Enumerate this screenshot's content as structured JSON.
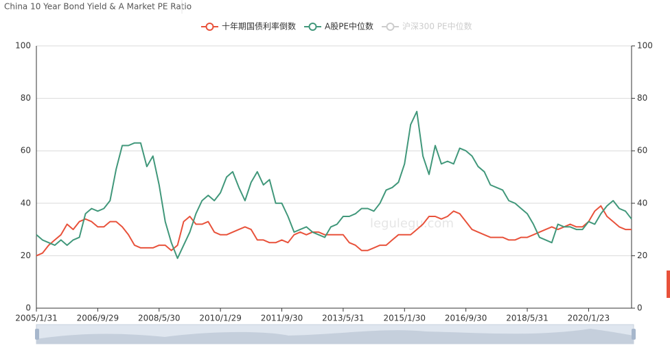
{
  "chart_data": {
    "type": "line",
    "title": "China 10 Year Bond Yield & A Market PE Ratio",
    "watermark": "legulegu.com",
    "categories": [
      "2005/1/31",
      null,
      null,
      null,
      null,
      null,
      null,
      null,
      null,
      null,
      "2006/9/29",
      null,
      null,
      null,
      null,
      null,
      null,
      null,
      null,
      null,
      "2008/5/30",
      null,
      null,
      null,
      null,
      null,
      null,
      null,
      null,
      null,
      "2010/1/29",
      null,
      null,
      null,
      null,
      null,
      null,
      null,
      null,
      null,
      "2011/9/30",
      null,
      null,
      null,
      null,
      null,
      null,
      null,
      null,
      null,
      "2013/5/31",
      null,
      null,
      null,
      null,
      null,
      null,
      null,
      null,
      null,
      "2015/1/30",
      null,
      null,
      null,
      null,
      null,
      null,
      null,
      null,
      null,
      "2016/9/30",
      null,
      null,
      null,
      null,
      null,
      null,
      null,
      null,
      null,
      "2018/5/31",
      null,
      null,
      null,
      null,
      null,
      null,
      null,
      null,
      null,
      "2020/1/23",
      null,
      null,
      null,
      null,
      null,
      null,
      null
    ],
    "series": [
      {
        "name": "十年期国债利率倒数",
        "color": "#e8513a",
        "values": [
          20,
          21,
          24,
          26,
          28,
          32,
          30,
          33,
          34,
          33,
          31,
          31,
          33,
          33,
          31,
          28,
          24,
          23,
          23,
          23,
          24,
          24,
          22,
          24,
          33,
          35,
          32,
          32,
          33,
          29,
          28,
          28,
          29,
          30,
          31,
          30,
          26,
          26,
          25,
          25,
          26,
          25,
          28,
          29,
          28,
          29,
          29,
          28,
          28,
          28,
          28,
          25,
          24,
          22,
          22,
          23,
          24,
          24,
          26,
          28,
          28,
          28,
          30,
          32,
          35,
          35,
          34,
          35,
          37,
          36,
          33,
          30,
          29,
          28,
          27,
          27,
          27,
          26,
          26,
          27,
          27,
          28,
          29,
          30,
          31,
          30,
          31,
          32,
          31,
          31,
          33,
          37,
          39,
          35,
          33,
          31,
          30,
          30
        ]
      },
      {
        "name": "A股PE中位数",
        "color": "#40977a",
        "values": [
          28,
          26,
          25,
          24,
          26,
          24,
          26,
          27,
          36,
          38,
          37,
          38,
          41,
          53,
          62,
          62,
          63,
          63,
          54,
          58,
          47,
          33,
          25,
          19,
          24,
          29,
          36,
          41,
          43,
          41,
          44,
          50,
          52,
          46,
          41,
          48,
          52,
          47,
          49,
          40,
          40,
          35,
          29,
          30,
          31,
          29,
          28,
          27,
          31,
          32,
          35,
          35,
          36,
          38,
          38,
          37,
          40,
          45,
          46,
          48,
          55,
          70,
          75,
          58,
          51,
          62,
          55,
          56,
          55,
          61,
          60,
          58,
          54,
          52,
          47,
          46,
          45,
          41,
          40,
          38,
          36,
          32,
          27,
          26,
          25,
          32,
          31,
          31,
          30,
          30,
          33,
          32,
          36,
          39,
          41,
          38,
          37,
          34
        ]
      }
    ],
    "legend_hidden": [
      "沪深300 PE中位数"
    ],
    "ylim": [
      0,
      100
    ],
    "yticks": [
      0,
      20,
      40,
      60,
      80,
      100
    ],
    "y2lim": [
      0,
      100
    ],
    "y2ticks": [
      0,
      20,
      40,
      60,
      80,
      100
    ],
    "grid": true
  }
}
